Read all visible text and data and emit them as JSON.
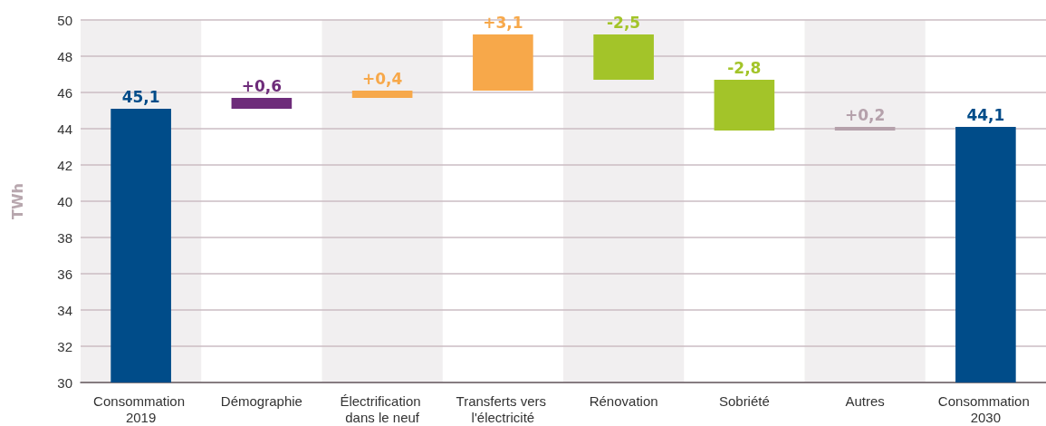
{
  "chart_data": {
    "type": "bar",
    "ylabel": "TWh",
    "categories": [
      "Consommation 2019",
      "Démographie",
      "Électrification dans le neuf",
      "Transferts vers l'électricité",
      "Rénovation",
      "Sobriété",
      "Autres",
      "Consommation 2030"
    ],
    "values": [
      45.1,
      0.6,
      0.4,
      3.1,
      -2.5,
      -2.8,
      0.2,
      44.1
    ],
    "base": [
      null,
      45.1,
      45.7,
      46.1,
      49.2,
      46.7,
      43.9,
      null
    ],
    "colors": [
      "#004c89",
      "#6e2c7a",
      "#f7a84a",
      "#f7a84a",
      "#a3c429",
      "#a3c429",
      "#b5a1ab",
      "#004c89"
    ],
    "value_labels": [
      "45,1",
      "+0,6",
      "+0,4",
      "+3,1",
      "-2,5",
      "-2,8",
      "+0,2",
      "44,1"
    ],
    "ylim": [
      30,
      50
    ],
    "yticks": [
      30,
      32,
      34,
      36,
      38,
      40,
      42,
      44,
      46,
      48,
      50
    ],
    "grid": "y",
    "bands": [
      {
        "axis": "x",
        "from": "Consommation 2019",
        "to": "Consommation 2019",
        "color": "#f1eff0"
      },
      {
        "axis": "x",
        "from": "Électrification dans le neuf",
        "to": "Électrification dans le neuf",
        "color": "#f1eff0"
      },
      {
        "axis": "x",
        "from": "Rénovation",
        "to": "Rénovation",
        "color": "#f1eff0"
      },
      {
        "axis": "x",
        "from": "Autres",
        "to": "Autres",
        "color": "#f1eff0"
      }
    ]
  }
}
